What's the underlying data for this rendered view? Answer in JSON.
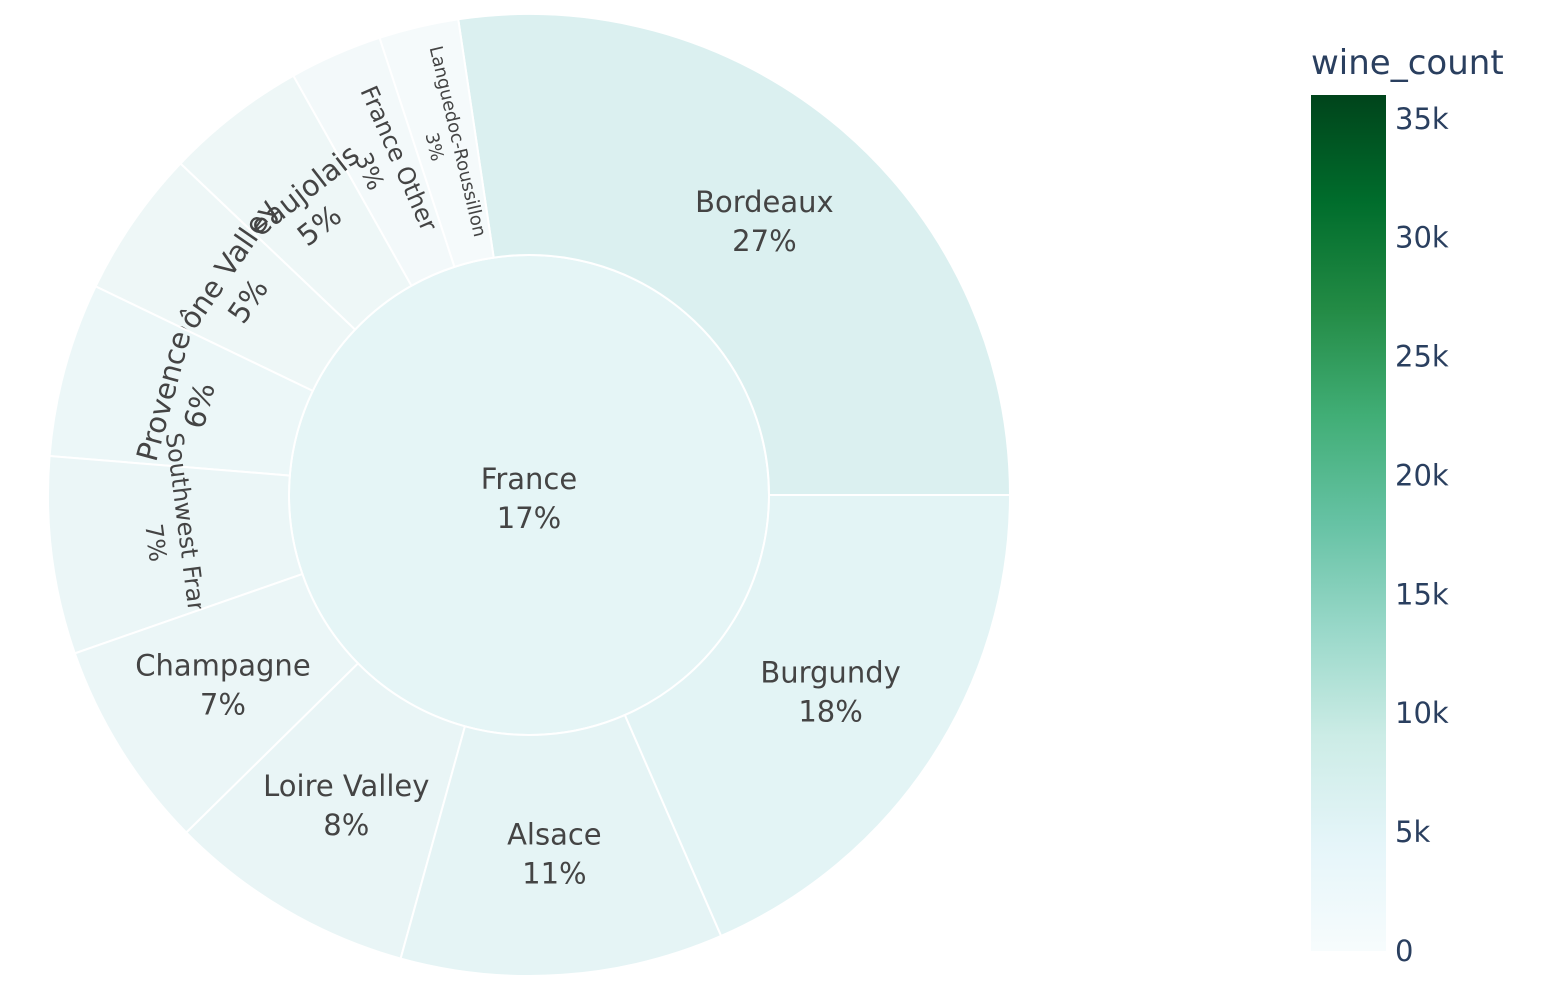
{
  "chart_data": {
    "type": "sunburst",
    "root": {
      "label": "France",
      "percent": "17%"
    },
    "segments": [
      {
        "label": "Bordeaux",
        "percent": "27%",
        "fraction": 0.2735,
        "color": "#dbf0f0"
      },
      {
        "label": "Languedoc-Roussillon",
        "percent": "3%",
        "fraction": 0.0268,
        "color": "#f5fafb"
      },
      {
        "label": "France Other",
        "percent": "3%",
        "fraction": 0.0312,
        "color": "#f3f9fa"
      },
      {
        "label": "Beaujolais",
        "percent": "5%",
        "fraction": 0.0475,
        "color": "#eef7f7"
      },
      {
        "label": "Rhône Valley",
        "percent": "5%",
        "fraction": 0.0496,
        "color": "#eef7f7"
      },
      {
        "label": "Provence",
        "percent": "6%",
        "fraction": 0.0585,
        "color": "#ecf7f8"
      },
      {
        "label": "Southwest France",
        "percent": "7%",
        "fraction": 0.0663,
        "color": "#ebf6f7"
      },
      {
        "label": "Champagne",
        "percent": "7%",
        "fraction": 0.0704,
        "color": "#ebf6f7"
      },
      {
        "label": "Loire Valley",
        "percent": "8%",
        "fraction": 0.0832,
        "color": "#e9f5f6"
      },
      {
        "label": "Alsace",
        "percent": "11%",
        "fraction": 0.1084,
        "color": "#e5f4f5"
      },
      {
        "label": "Burgundy",
        "percent": "18%",
        "fraction": 0.1846,
        "color": "#e3f4f5"
      }
    ],
    "root_color": "#e5f5f6",
    "colorbar": {
      "title": "wine_count",
      "min": 0,
      "max": 36000,
      "ticks": [
        {
          "value": 0,
          "label": "0"
        },
        {
          "value": 5000,
          "label": "5k"
        },
        {
          "value": 10000,
          "label": "10k"
        },
        {
          "value": 15000,
          "label": "15k"
        },
        {
          "value": 20000,
          "label": "20k"
        },
        {
          "value": 25000,
          "label": "25k"
        },
        {
          "value": 30000,
          "label": "30k"
        },
        {
          "value": 35000,
          "label": "35k"
        }
      ],
      "colorscale": [
        "#f7fcfd",
        "#e5f5f9",
        "#ccece6",
        "#99d8c9",
        "#66c2a4",
        "#41ae76",
        "#238b45",
        "#006d2c",
        "#00441b"
      ]
    }
  }
}
